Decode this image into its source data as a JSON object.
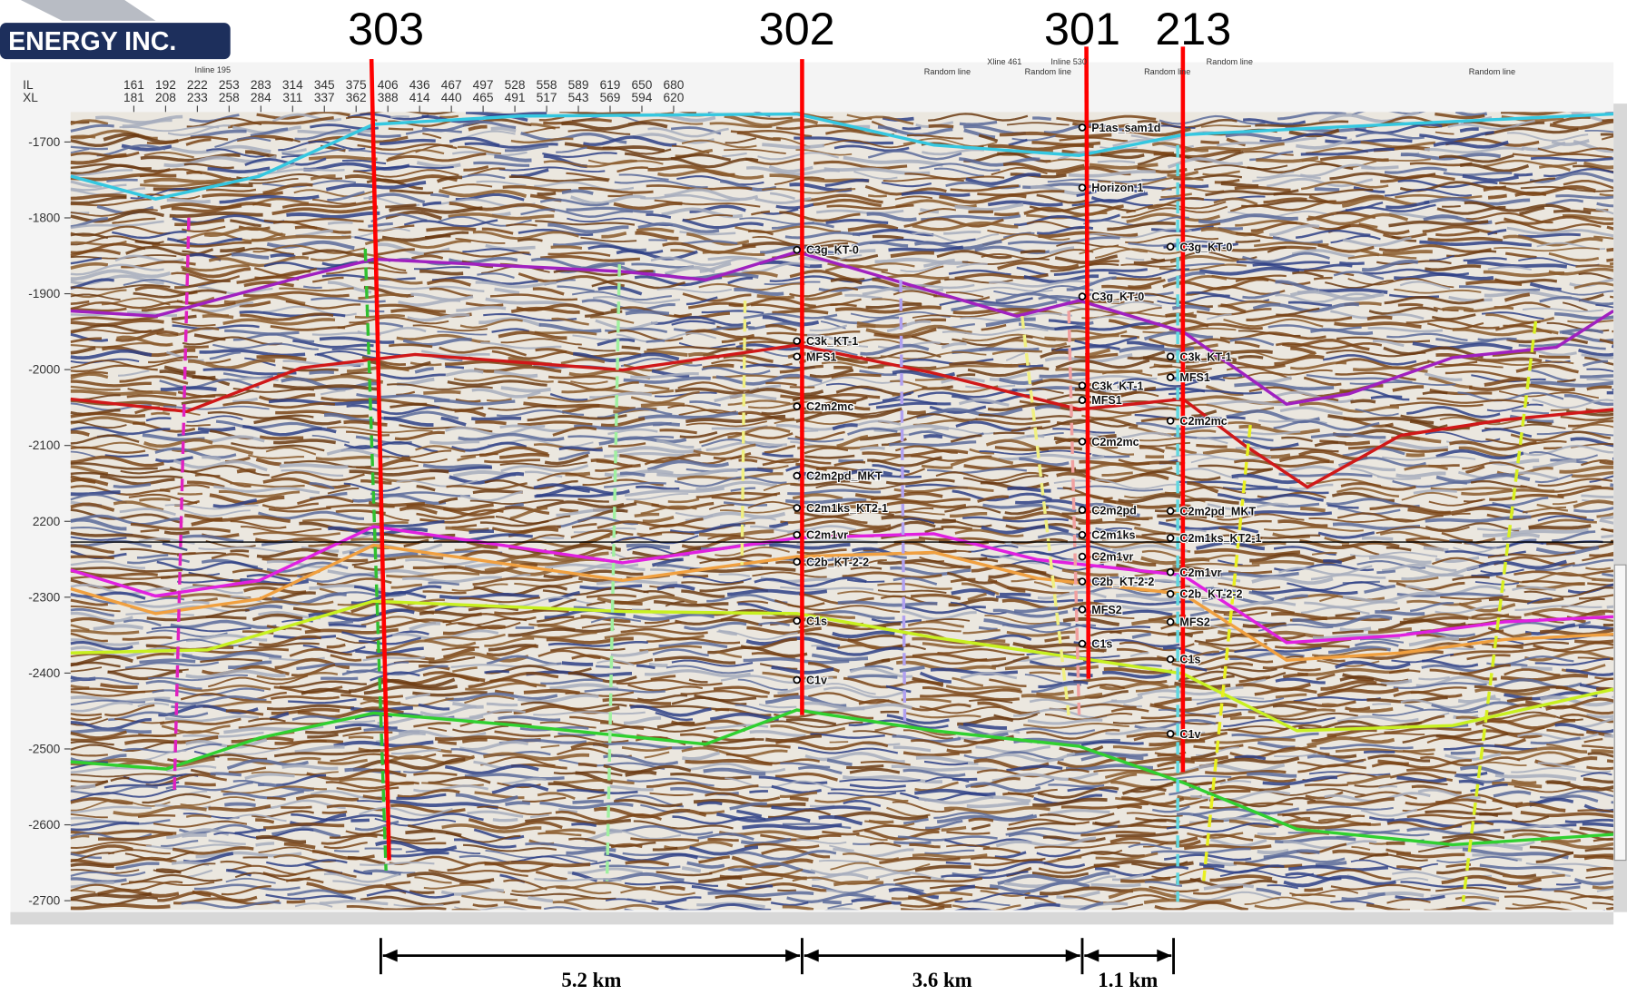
{
  "header": {
    "company": "ENERGY INC."
  },
  "wells": [
    {
      "label": "303"
    },
    {
      "label": "302"
    },
    {
      "label": "301"
    },
    {
      "label": "213"
    }
  ],
  "distances": [
    "5.2 km",
    "3.6 km",
    "1.1 km"
  ],
  "axis": {
    "row_labels": [
      "IL",
      "XL"
    ],
    "inlines": [
      161,
      192,
      222,
      253,
      283,
      314,
      345,
      375,
      406,
      436,
      467,
      497,
      528,
      558,
      589,
      619,
      650,
      680
    ],
    "crosslines": [
      181,
      208,
      233,
      258,
      284,
      311,
      337,
      362,
      388,
      414,
      440,
      465,
      491,
      517,
      543,
      569,
      594,
      620
    ],
    "depth_ticks": [
      -1700,
      -1800,
      -1900,
      -2000,
      -2100,
      2200,
      -2300,
      -2400,
      -2500,
      -2600,
      -2700
    ]
  },
  "section_labels": [
    "Inline 195",
    "Random line",
    "Xline 461",
    "Inline 530",
    "Random line",
    "Random line",
    "Random line",
    "Random line"
  ],
  "horizon_markers": {
    "well_302": [
      "C3g_KT-0",
      "C3k_KT-1",
      "MFS1",
      "C2m2mc",
      "C2m2pd_MKT",
      "C2m1ks_KT2-1",
      "C2m1vr",
      "C2b_KT-2-2",
      "C1s",
      "C1v"
    ],
    "well_301": [
      "P1as_sam1d",
      "Horizon 1",
      "C3g_KT-0",
      "C3k_KT-1",
      "MFS1",
      "C2m2mc",
      "C2m2pd",
      "C2m1ks",
      "C2m1vr",
      "C2b_KT-2-2",
      "MFS2",
      "C1s"
    ],
    "well_213": [
      "C3g_KT-0",
      "C3k_KT-1",
      "MFS1",
      "C2m2mc",
      "C2m2pd_MKT",
      "C2m1ks_KT2-1",
      "C2m1vr",
      "C2b_KT-2-2",
      "MFS2",
      "C1s",
      "C1v"
    ]
  }
}
